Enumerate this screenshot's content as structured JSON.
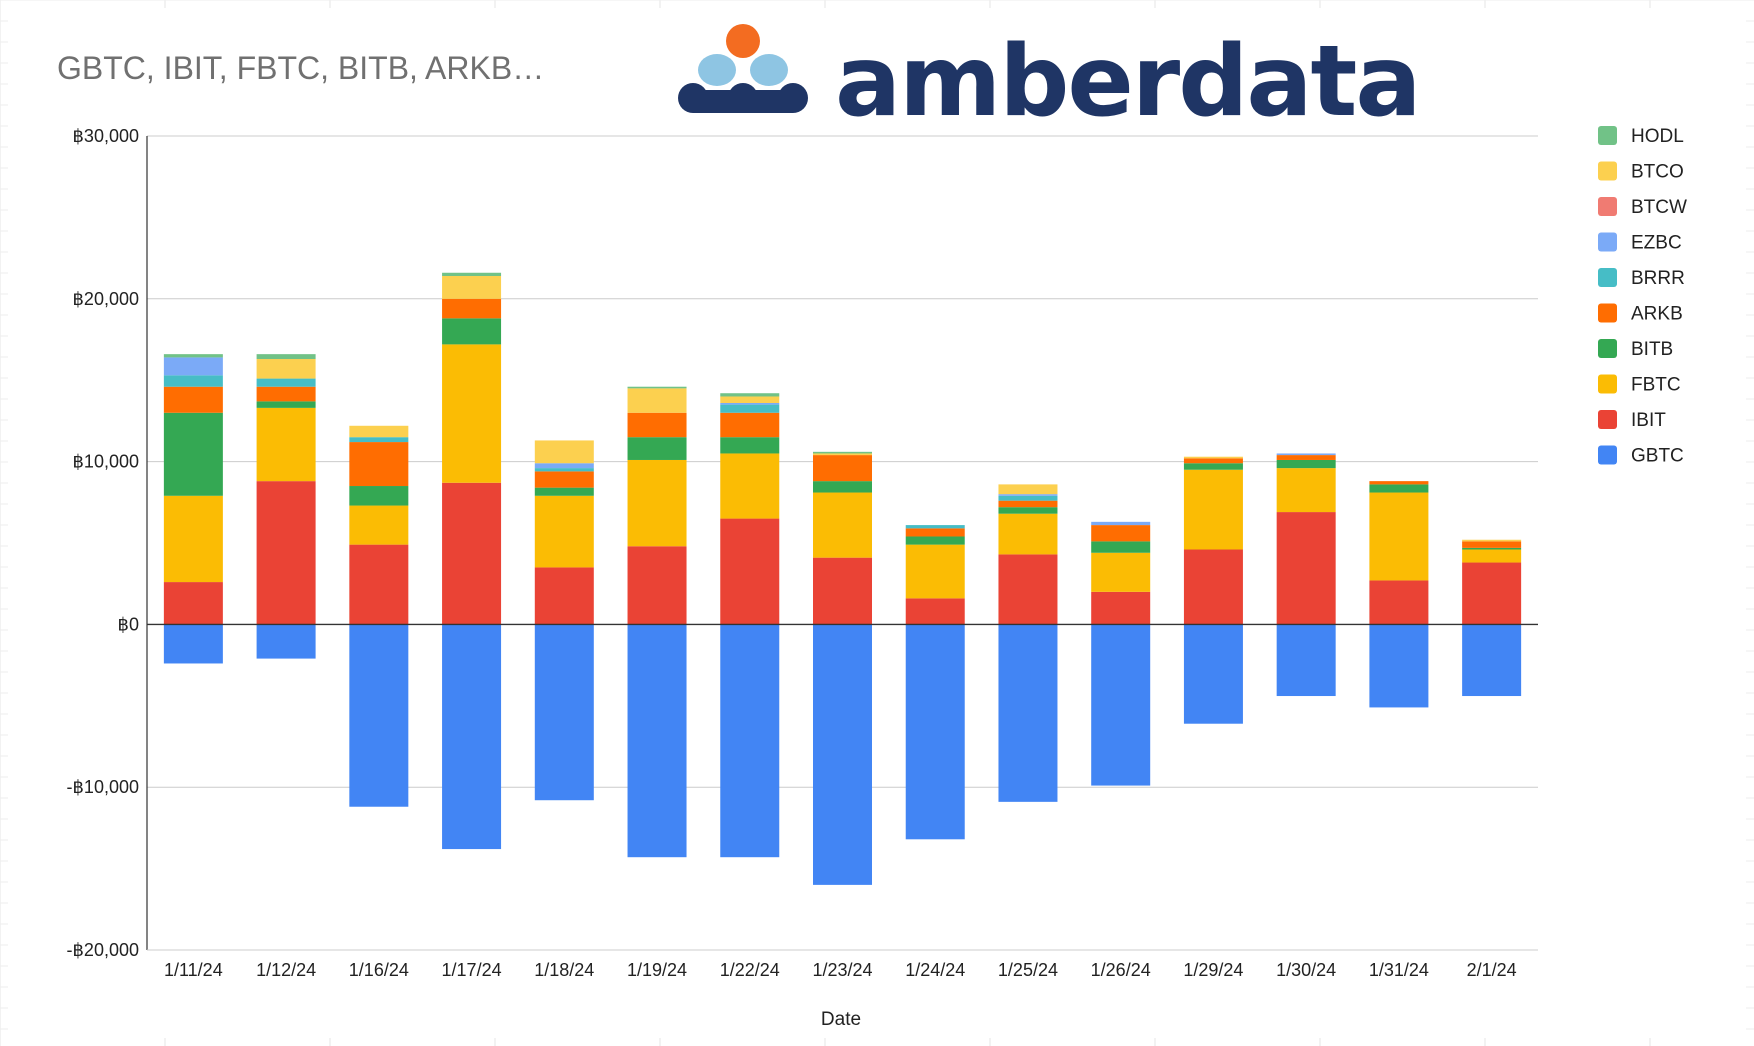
{
  "chart_data": {
    "type": "bar",
    "stacked": true,
    "title": "GBTC, IBIT, FBTC, BITB, ARKB…",
    "xlabel": "Date",
    "ylabel": "",
    "ylim": [
      -20000,
      30000
    ],
    "yticks": [
      30000,
      20000,
      10000,
      0,
      -10000,
      -20000
    ],
    "ytick_labels": [
      "฿30,000",
      "฿20,000",
      "฿10,000",
      "฿0",
      "-฿10,000",
      "-฿20,000"
    ],
    "legend_position": "right",
    "grid": true,
    "categories": [
      "1/11/24",
      "1/12/24",
      "1/16/24",
      "1/17/24",
      "1/18/24",
      "1/19/24",
      "1/22/24",
      "1/23/24",
      "1/24/24",
      "1/25/24",
      "1/26/24",
      "1/29/24",
      "1/30/24",
      "1/31/24",
      "2/1/24"
    ],
    "series": [
      {
        "name": "GBTC",
        "color": "#4285f4",
        "values": [
          -2400,
          -2100,
          -11200,
          -13800,
          -10800,
          -14300,
          -14300,
          -16000,
          -13200,
          -10900,
          -9900,
          -6100,
          -4400,
          -5100,
          -4400
        ]
      },
      {
        "name": "IBIT",
        "color": "#ea4335",
        "values": [
          2600,
          8800,
          4900,
          8700,
          3500,
          4800,
          6500,
          4100,
          1600,
          4300,
          2000,
          4600,
          6900,
          2700,
          3800
        ]
      },
      {
        "name": "FBTC",
        "color": "#fbbc04",
        "values": [
          5300,
          4500,
          2400,
          8500,
          4400,
          5300,
          4000,
          4000,
          3300,
          2500,
          2400,
          4900,
          2700,
          5400,
          800
        ]
      },
      {
        "name": "BITB",
        "color": "#34a853",
        "values": [
          5100,
          400,
          1200,
          1600,
          500,
          1400,
          1000,
          700,
          500,
          400,
          700,
          400,
          500,
          500,
          100
        ]
      },
      {
        "name": "ARKB",
        "color": "#ff6d01",
        "values": [
          1600,
          900,
          2700,
          1200,
          1000,
          1500,
          1500,
          1600,
          500,
          400,
          1000,
          300,
          300,
          200,
          400
        ]
      },
      {
        "name": "BRRR",
        "color": "#46bdc6",
        "values": [
          700,
          500,
          300,
          0,
          200,
          0,
          500,
          0,
          200,
          300,
          0,
          0,
          0,
          0,
          0
        ]
      },
      {
        "name": "EZBC",
        "color": "#7baaf7",
        "values": [
          1100,
          0,
          0,
          0,
          300,
          0,
          100,
          0,
          0,
          100,
          200,
          0,
          100,
          0,
          0
        ]
      },
      {
        "name": "BTCW",
        "color": "#f07b72",
        "values": [
          0,
          0,
          0,
          0,
          0,
          0,
          0,
          0,
          0,
          0,
          0,
          0,
          0,
          0,
          0
        ]
      },
      {
        "name": "BTCO",
        "color": "#fcd04f",
        "values": [
          0,
          1200,
          700,
          1400,
          1400,
          1500,
          400,
          100,
          0,
          600,
          0,
          100,
          0,
          0,
          100
        ]
      },
      {
        "name": "HODL",
        "color": "#71c287",
        "values": [
          200,
          300,
          0,
          200,
          0,
          100,
          200,
          100,
          0,
          0,
          0,
          0,
          0,
          0,
          0
        ]
      }
    ],
    "legend_order": [
      "HODL",
      "BTCO",
      "BTCW",
      "EZBC",
      "BRRR",
      "ARKB",
      "BITB",
      "FBTC",
      "IBIT",
      "GBTC"
    ]
  },
  "brand": {
    "name": "amberdata",
    "text_color": "#1f3565",
    "dot_orange": "#f36c21",
    "dot_light": "#8ec5e3"
  },
  "colors": {
    "gridline": "#cccccc",
    "baseline": "#333333",
    "background": "#ffffff"
  }
}
